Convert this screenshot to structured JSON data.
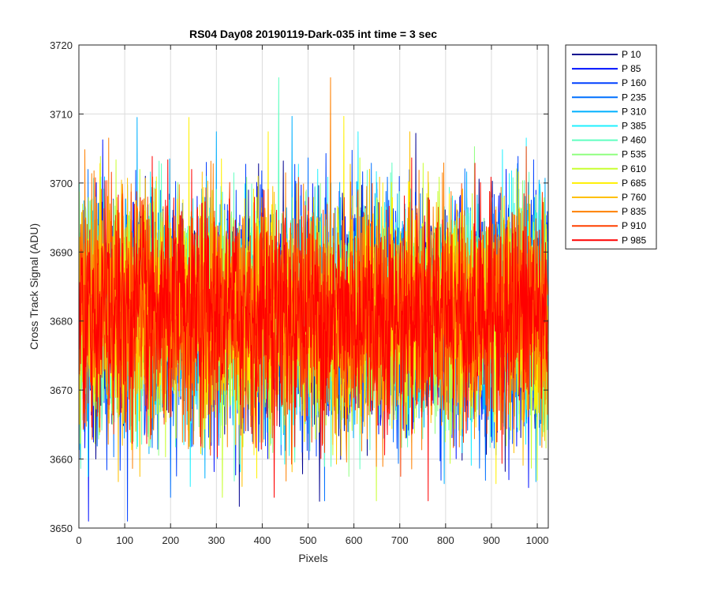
{
  "chart_data": {
    "type": "line",
    "title": "RS04 Day08 20190119-Dark-035 int time = 3 sec",
    "xlabel": "Pixels",
    "ylabel": "Cross Track Signal (ADU)",
    "xlim": [
      0,
      1024
    ],
    "ylim": [
      3650,
      3720
    ],
    "xticks": [
      0,
      100,
      200,
      300,
      400,
      500,
      600,
      700,
      800,
      900,
      1000
    ],
    "yticks": [
      3650,
      3660,
      3670,
      3680,
      3690,
      3700,
      3710,
      3720
    ],
    "grid": true,
    "legend_position": "outside-top-right",
    "n_points": 1024,
    "signal_mean": 3681,
    "signal_std": 8,
    "series": [
      {
        "name": "P 10",
        "color": "#00008F"
      },
      {
        "name": "P 85",
        "color": "#0010FF"
      },
      {
        "name": "P 160",
        "color": "#0040FF"
      },
      {
        "name": "P 235",
        "color": "#0070FF"
      },
      {
        "name": "P 310",
        "color": "#00B0FF"
      },
      {
        "name": "P 385",
        "color": "#20F0FF"
      },
      {
        "name": "P 460",
        "color": "#60FFC0"
      },
      {
        "name": "P 535",
        "color": "#90FF80"
      },
      {
        "name": "P 610",
        "color": "#C8FF30"
      },
      {
        "name": "P 685",
        "color": "#FFF000"
      },
      {
        "name": "P 760",
        "color": "#FFC000"
      },
      {
        "name": "P 835",
        "color": "#FF8000"
      },
      {
        "name": "P 910",
        "color": "#FF4000"
      },
      {
        "name": "P 985",
        "color": "#FF0000"
      }
    ]
  }
}
